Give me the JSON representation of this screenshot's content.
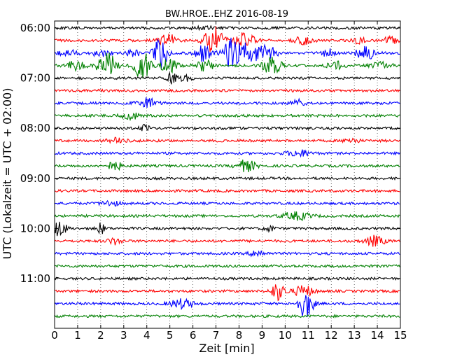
{
  "chart_data": {
    "type": "line",
    "title": "BW.HROE..EHZ 2016-08-19",
    "xlabel": "Zeit  [min]",
    "ylabel": "UTC (Lokalzeit = UTC + 02:00)",
    "xlim": [
      0,
      15
    ],
    "x_ticks": [
      "0",
      "1",
      "2",
      "3",
      "4",
      "5",
      "6",
      "7",
      "8",
      "9",
      "10",
      "11",
      "12",
      "13",
      "14",
      "15"
    ],
    "y_ticks": [
      "06:00",
      "07:00",
      "08:00",
      "09:00",
      "10:00",
      "11:00"
    ],
    "x_grid": true,
    "legend": "none",
    "color_cycle": [
      "#000000",
      "#ff0000",
      "#0000ff",
      "#008000"
    ],
    "trace_minutes_per_line": 15,
    "series": [
      {
        "start": "06:00",
        "color": "#000000",
        "bursts": [
          [
            6.5,
            0.2,
            0.5
          ]
        ]
      },
      {
        "start": "06:15",
        "color": "#ff0000",
        "bursts": [
          [
            4.9,
            1.0,
            0.4
          ],
          [
            6.9,
            2.2,
            0.4
          ],
          [
            8.2,
            1.2,
            0.5
          ],
          [
            10.8,
            0.6,
            0.4
          ],
          [
            13.2,
            0.5,
            0.3
          ],
          [
            14.6,
            0.5,
            0.4
          ]
        ]
      },
      {
        "start": "06:30",
        "color": "#0000ff",
        "bursts": [
          [
            0.6,
            0.5,
            0.4
          ],
          [
            2.0,
            0.5,
            0.4
          ],
          [
            3.4,
            0.6,
            0.3
          ],
          [
            4.6,
            2.4,
            0.3
          ],
          [
            6.4,
            1.2,
            0.4
          ],
          [
            7.6,
            2.0,
            0.3
          ],
          [
            8.3,
            1.6,
            0.5
          ],
          [
            9.2,
            1.2,
            0.4
          ],
          [
            11.8,
            0.7,
            0.3
          ],
          [
            13.5,
            1.0,
            0.4
          ]
        ]
      },
      {
        "start": "06:45",
        "color": "#008000",
        "bursts": [
          [
            0.9,
            0.7,
            0.4
          ],
          [
            2.2,
            1.4,
            0.4
          ],
          [
            2.4,
            0.7,
            0.3
          ],
          [
            3.8,
            2.8,
            0.3
          ],
          [
            4.9,
            1.2,
            0.4
          ],
          [
            6.5,
            0.8,
            0.4
          ],
          [
            9.4,
            1.4,
            0.4
          ],
          [
            12.2,
            0.6,
            0.4
          ],
          [
            14.2,
            0.6,
            0.4
          ]
        ]
      },
      {
        "start": "07:00",
        "color": "#000000",
        "bursts": [
          [
            5.1,
            0.9,
            0.2
          ],
          [
            5.6,
            0.6,
            0.3
          ]
        ]
      },
      {
        "start": "07:15",
        "color": "#ff0000",
        "bursts": []
      },
      {
        "start": "07:30",
        "color": "#0000ff",
        "bursts": [
          [
            4.0,
            0.8,
            0.4
          ],
          [
            10.6,
            0.5,
            0.3
          ]
        ]
      },
      {
        "start": "07:45",
        "color": "#008000",
        "bursts": [
          [
            3.3,
            0.5,
            0.4
          ]
        ]
      },
      {
        "start": "08:00",
        "color": "#000000",
        "bursts": [
          [
            3.9,
            0.5,
            0.2
          ]
        ]
      },
      {
        "start": "08:15",
        "color": "#ff0000",
        "bursts": [
          [
            2.7,
            0.4,
            0.4
          ],
          [
            12.9,
            0.4,
            0.3
          ]
        ]
      },
      {
        "start": "08:30",
        "color": "#0000ff",
        "bursts": [
          [
            10.6,
            0.5,
            0.5
          ]
        ]
      },
      {
        "start": "08:45",
        "color": "#008000",
        "bursts": [
          [
            2.6,
            0.7,
            0.3
          ],
          [
            8.3,
            0.9,
            0.4
          ]
        ]
      },
      {
        "start": "09:00",
        "color": "#000000",
        "bursts": []
      },
      {
        "start": "09:15",
        "color": "#ff0000",
        "bursts": []
      },
      {
        "start": "09:30",
        "color": "#0000ff",
        "bursts": [
          [
            2.4,
            0.4,
            0.4
          ]
        ]
      },
      {
        "start": "09:45",
        "color": "#008000",
        "bursts": [
          [
            10.5,
            0.6,
            0.6
          ]
        ]
      },
      {
        "start": "10:00",
        "color": "#000000",
        "bursts": [
          [
            0.2,
            1.2,
            0.3
          ],
          [
            2.0,
            0.8,
            0.2
          ],
          [
            9.3,
            0.5,
            0.2
          ]
        ]
      },
      {
        "start": "10:15",
        "color": "#ff0000",
        "bursts": [
          [
            2.6,
            0.5,
            0.3
          ],
          [
            13.9,
            0.8,
            0.4
          ]
        ]
      },
      {
        "start": "10:30",
        "color": "#0000ff",
        "bursts": [
          [
            8.8,
            0.6,
            0.3
          ]
        ]
      },
      {
        "start": "10:45",
        "color": "#008000",
        "bursts": []
      },
      {
        "start": "11:00",
        "color": "#000000",
        "bursts": []
      },
      {
        "start": "11:15",
        "color": "#ff0000",
        "bursts": [
          [
            9.7,
            1.4,
            0.3
          ],
          [
            10.8,
            0.9,
            0.4
          ]
        ]
      },
      {
        "start": "11:30",
        "color": "#0000ff",
        "bursts": [
          [
            5.5,
            0.7,
            0.5
          ],
          [
            10.9,
            2.3,
            0.3
          ]
        ]
      },
      {
        "start": "11:45",
        "color": "#008000",
        "bursts": []
      }
    ]
  }
}
